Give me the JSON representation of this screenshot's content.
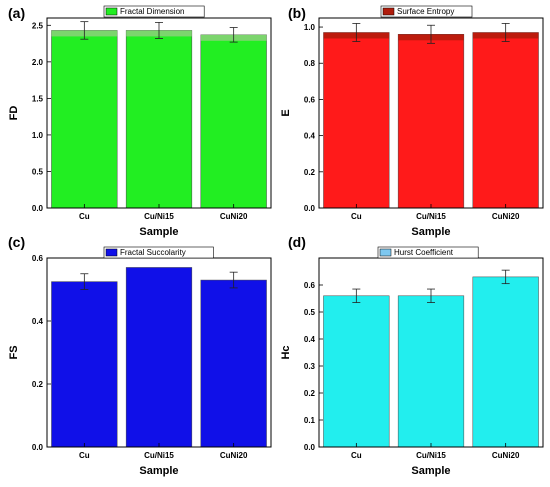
{
  "colors": {
    "fd_fill": "#22ee22",
    "fd_top": "#8cd07a",
    "e_fill": "#ff1a1a",
    "e_top": "#b01c0c",
    "fs_fill": "#1010e8",
    "hc_fill": "#22eeee",
    "hc_legend": "#7ec8f0"
  },
  "chart_data": [
    {
      "type": "bar",
      "panel": "(a)",
      "legend": "Fractal Dimension",
      "categories": [
        "Cu",
        "Cu/Ni15",
        "CuNi20"
      ],
      "values": [
        2.43,
        2.43,
        2.37
      ],
      "errors": [
        0.12,
        0.11,
        0.1
      ],
      "xlabel": "Sample",
      "ylabel": "FD",
      "ylim": [
        0,
        2.6
      ],
      "yticks": [
        "0.0",
        "0.5",
        "1.0",
        "1.5",
        "2.0",
        "2.5"
      ],
      "ytick_values": [
        0,
        0.5,
        1.0,
        1.5,
        2.0,
        2.5
      ]
    },
    {
      "type": "bar",
      "panel": "(b)",
      "legend": "Surface Entropy",
      "categories": [
        "Cu",
        "Cu/Ni15",
        "CuNi20"
      ],
      "values": [
        0.97,
        0.96,
        0.97
      ],
      "errors": [
        0.05,
        0.05,
        0.05
      ],
      "xlabel": "Sample",
      "ylabel": "E",
      "ylim": [
        0,
        1.05
      ],
      "yticks": [
        "0.0",
        "0.2",
        "0.4",
        "0.6",
        "0.8",
        "1.0"
      ],
      "ytick_values": [
        0,
        0.2,
        0.4,
        0.6,
        0.8,
        1.0
      ]
    },
    {
      "type": "bar",
      "panel": "(c)",
      "legend": "Fractal Succolarity",
      "categories": [
        "Cu",
        "Cu/Ni15",
        "CuNi20"
      ],
      "values": [
        0.525,
        0.57,
        0.53
      ],
      "errors": [
        0.025,
        0.0,
        0.025
      ],
      "xlabel": "Sample",
      "ylabel": "FS",
      "ylim": [
        0,
        0.6
      ],
      "yticks": [
        "0.0",
        "0.2",
        "0.4",
        "0.6"
      ],
      "ytick_values": [
        0,
        0.2,
        0.4,
        0.6
      ]
    },
    {
      "type": "bar",
      "panel": "(d)",
      "legend": "Hurst Coefficient",
      "categories": [
        "Cu",
        "Cu/Ni15",
        "CuNi20"
      ],
      "values": [
        0.56,
        0.56,
        0.63
      ],
      "errors": [
        0.025,
        0.025,
        0.025
      ],
      "xlabel": "Sample",
      "ylabel": "Hc",
      "ylim": [
        0,
        0.7
      ],
      "yticks": [
        "0.0",
        "0.1",
        "0.2",
        "0.3",
        "0.4",
        "0.5",
        "0.6"
      ],
      "ytick_values": [
        0,
        0.1,
        0.2,
        0.3,
        0.4,
        0.5,
        0.6
      ]
    }
  ]
}
